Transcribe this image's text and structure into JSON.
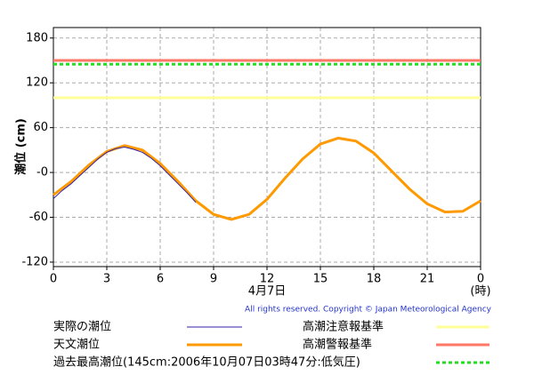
{
  "chart_data": {
    "type": "line",
    "y_label": "潮位 (cm)",
    "x_label": "4月7日",
    "x_unit": "(時)",
    "copyright": "All rights reserved. Copyright © Japan Meteorological Agency",
    "xlim": [
      0,
      24
    ],
    "xticks": [
      0,
      3,
      6,
      9,
      12,
      15,
      18,
      21,
      {
        "value": 24,
        "label": "0"
      }
    ],
    "ylim": [
      -126,
      194
    ],
    "yticks": [
      180,
      120,
      60,
      {
        "value": 0,
        "label": "-0"
      },
      -60,
      -120
    ],
    "grid": true,
    "series": [
      {
        "name": "実際の潮位",
        "color": "#3322aa",
        "width": 1,
        "x": [
          0,
          0.5,
          1,
          1.5,
          2,
          2.5,
          3,
          3.5,
          4,
          4.5,
          5,
          5.5,
          6,
          6.5,
          7,
          7.5,
          8
        ],
        "values": [
          -35,
          -24,
          -15,
          -4,
          7,
          18,
          27,
          32,
          34,
          31,
          27,
          19,
          9,
          -3,
          -15,
          -27,
          -40
        ]
      },
      {
        "name": "天文潮位",
        "color": "#ff9900",
        "width": 3,
        "x": [
          0,
          1,
          2,
          3,
          4,
          5,
          6,
          7,
          8,
          9,
          10,
          11,
          12,
          13,
          14,
          15,
          16,
          17,
          18,
          19,
          20,
          21,
          22,
          23,
          24
        ],
        "values": [
          -30,
          -12,
          10,
          28,
          36,
          30,
          12,
          -12,
          -38,
          -56,
          -63,
          -56,
          -36,
          -8,
          18,
          38,
          46,
          42,
          26,
          2,
          -22,
          -42,
          -53,
          -52,
          -38
        ]
      }
    ],
    "reference_lines": [
      {
        "name": "高潮注意報基準",
        "value": 100,
        "color": "#ffff99",
        "dashed": false
      },
      {
        "name": "高潮警報基準",
        "value": 150,
        "color": "#ff7766",
        "dashed": false
      },
      {
        "name": "過去最高潮位(145cm:2006年10月07日03時47分:低気圧)",
        "value": 145,
        "color": "#22dd22",
        "dashed": true
      }
    ]
  }
}
